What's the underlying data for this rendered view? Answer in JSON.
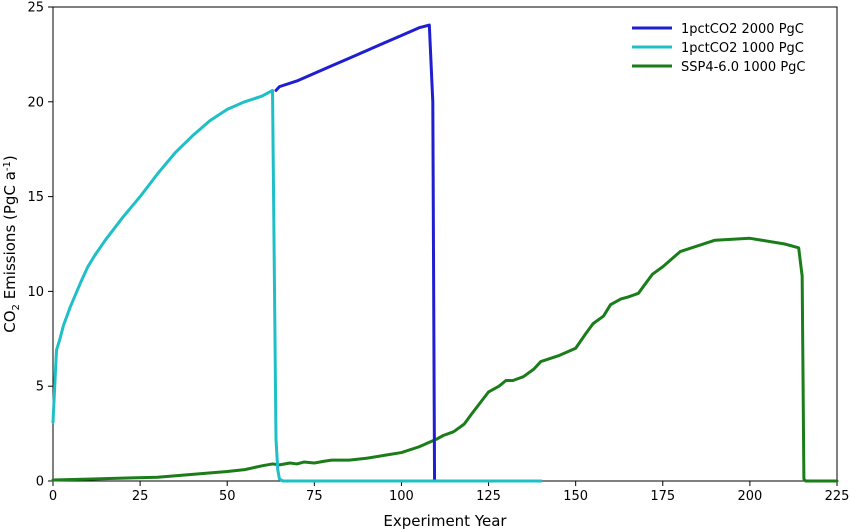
{
  "chart_data": {
    "type": "line",
    "xlabel": "Experiment Year",
    "ylabel": {
      "prefix": "CO",
      "prefix_sub": "2",
      "middle": " Emissions (PgC a",
      "sup": "-1",
      "suffix": ")"
    },
    "xlim": [
      0,
      225
    ],
    "ylim": [
      0,
      25
    ],
    "xticks": [
      0,
      25,
      50,
      75,
      100,
      125,
      150,
      175,
      200,
      225
    ],
    "yticks": [
      0,
      5,
      10,
      15,
      20,
      25
    ],
    "grid": false,
    "legend_position": "top-right",
    "series": [
      {
        "name": "1pctCO2 2000 PgC",
        "color": "#1f1fd1",
        "x": [
          64,
          65,
          70,
          75,
          80,
          85,
          90,
          95,
          100,
          105,
          108,
          109,
          109.5,
          110,
          120,
          140
        ],
        "y": [
          20.6,
          20.8,
          21.1,
          21.5,
          21.9,
          22.3,
          22.7,
          23.1,
          23.5,
          23.9,
          24.05,
          20.0,
          0,
          0,
          0,
          0
        ]
      },
      {
        "name": "1pctCO2 1000 PgC",
        "color": "#1fbfc8",
        "x": [
          0,
          0.5,
          1,
          2,
          3,
          5,
          8,
          10,
          12,
          15,
          20,
          25,
          30,
          35,
          40,
          45,
          50,
          55,
          60,
          62,
          63,
          64,
          64.5,
          65,
          66,
          70,
          80,
          100,
          120,
          140
        ],
        "y": [
          3.1,
          5.0,
          6.9,
          7.5,
          8.2,
          9.2,
          10.5,
          11.3,
          11.9,
          12.7,
          13.9,
          15.0,
          16.2,
          17.3,
          18.2,
          19.0,
          19.6,
          20.0,
          20.3,
          20.5,
          20.6,
          2.2,
          0.6,
          0.1,
          0,
          0,
          0,
          0,
          0,
          0
        ]
      },
      {
        "name": "SSP4-6.0 1000 PgC",
        "color": "#1a7d1a",
        "x": [
          0,
          10,
          20,
          30,
          40,
          50,
          55,
          60,
          63,
          65,
          68,
          70,
          72,
          75,
          78,
          80,
          85,
          90,
          95,
          100,
          105,
          110,
          112,
          115,
          118,
          120,
          125,
          128,
          130,
          132,
          135,
          138,
          140,
          145,
          150,
          153,
          155,
          158,
          160,
          163,
          165,
          168,
          170,
          172,
          175,
          180,
          190,
          200,
          210,
          214,
          215,
          215.5,
          216,
          220,
          225
        ],
        "y": [
          0.05,
          0.1,
          0.15,
          0.2,
          0.35,
          0.5,
          0.6,
          0.8,
          0.9,
          0.85,
          0.95,
          0.9,
          1.0,
          0.95,
          1.05,
          1.1,
          1.1,
          1.2,
          1.35,
          1.5,
          1.8,
          2.2,
          2.4,
          2.6,
          3.0,
          3.5,
          4.7,
          5.0,
          5.3,
          5.3,
          5.5,
          5.9,
          6.3,
          6.6,
          7.0,
          7.8,
          8.3,
          8.7,
          9.3,
          9.6,
          9.7,
          9.9,
          10.4,
          10.9,
          11.3,
          12.1,
          12.7,
          12.8,
          12.5,
          12.3,
          10.8,
          0.1,
          0,
          0,
          0
        ]
      }
    ]
  }
}
